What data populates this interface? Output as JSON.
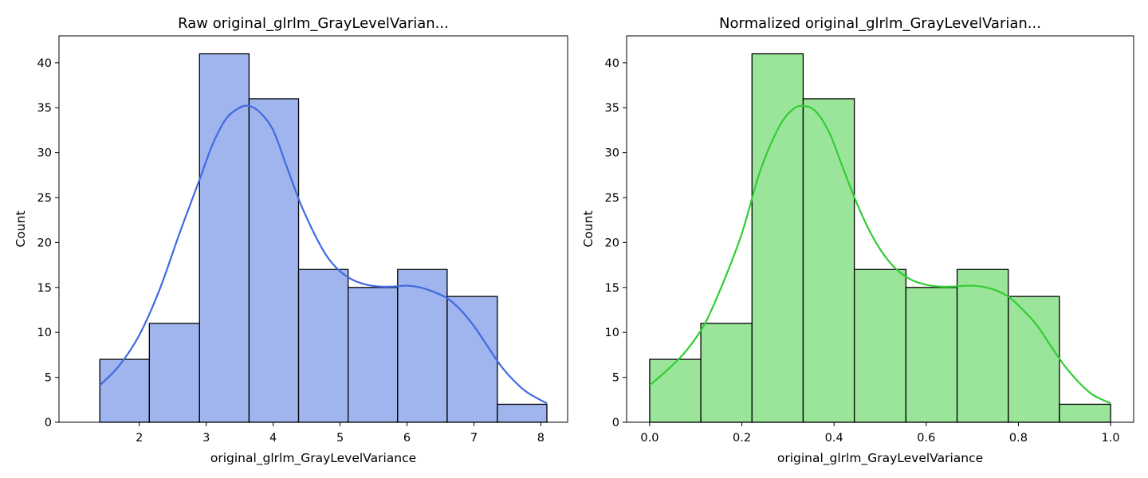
{
  "chart_data": [
    {
      "type": "bar",
      "title": "Raw original_glrlm_GrayLevelVarian...",
      "xlabel": "original_glrlm_GrayLevelVariance",
      "ylabel": "Count",
      "xlim": [
        0.8,
        8.4
      ],
      "ylim": [
        0,
        43
      ],
      "xticks": [
        2,
        3,
        4,
        5,
        6,
        7,
        8
      ],
      "yticks": [
        0,
        5,
        10,
        15,
        20,
        25,
        30,
        35,
        40
      ],
      "bin_edges": [
        1.41,
        2.15,
        2.9,
        3.64,
        4.38,
        5.12,
        5.86,
        6.6,
        7.35,
        8.09
      ],
      "values": [
        7,
        11,
        41,
        36,
        17,
        15,
        17,
        14,
        2
      ],
      "kde": {
        "x": [
          1.41,
          1.7,
          2.0,
          2.3,
          2.6,
          2.9,
          3.1,
          3.3,
          3.5,
          3.64,
          3.8,
          4.0,
          4.2,
          4.4,
          4.6,
          4.8,
          5.0,
          5.2,
          5.4,
          5.6,
          5.8,
          6.0,
          6.2,
          6.4,
          6.6,
          6.8,
          7.0,
          7.2,
          7.4,
          7.6,
          7.8,
          8.09
        ],
        "y": [
          4.1,
          6.3,
          9.7,
          14.7,
          21.0,
          27.0,
          31.0,
          33.8,
          35.0,
          35.2,
          34.5,
          32.5,
          28.5,
          24.5,
          21.2,
          18.5,
          16.8,
          15.8,
          15.3,
          15.1,
          15.1,
          15.2,
          15.0,
          14.5,
          13.8,
          12.5,
          10.7,
          8.5,
          6.3,
          4.6,
          3.3,
          2.1
        ]
      },
      "bar_color": "#a0b4ee",
      "line_color": "#4169e1",
      "grid": false,
      "legend": "none"
    },
    {
      "type": "bar",
      "title": "Normalized original_glrlm_GrayLevelVarian...",
      "xlabel": "original_glrlm_GrayLevelVariance",
      "ylabel": "Count",
      "xlim": [
        -0.05,
        1.05
      ],
      "ylim": [
        0,
        43
      ],
      "xticks": [
        0.0,
        0.2,
        0.4,
        0.6,
        0.8,
        1.0
      ],
      "xtick_labels": [
        "0.0",
        "0.2",
        "0.4",
        "0.6",
        "0.8",
        "1.0"
      ],
      "yticks": [
        0,
        5,
        10,
        15,
        20,
        25,
        30,
        35,
        40
      ],
      "bin_edges": [
        0.0,
        0.111,
        0.222,
        0.333,
        0.444,
        0.556,
        0.667,
        0.778,
        0.889,
        1.0
      ],
      "values": [
        7,
        11,
        41,
        36,
        17,
        15,
        17,
        14,
        2
      ],
      "kde": {
        "x": [
          0.0,
          0.04,
          0.08,
          0.12,
          0.16,
          0.2,
          0.24,
          0.28,
          0.31,
          0.333,
          0.36,
          0.39,
          0.42,
          0.45,
          0.48,
          0.51,
          0.54,
          0.57,
          0.6,
          0.63,
          0.66,
          0.69,
          0.72,
          0.75,
          0.78,
          0.81,
          0.84,
          0.87,
          0.9,
          0.93,
          0.96,
          1.0
        ],
        "y": [
          4.1,
          5.9,
          8.0,
          11.0,
          15.6,
          21.0,
          28.0,
          32.8,
          34.8,
          35.2,
          34.6,
          32.2,
          28.2,
          24.3,
          21.0,
          18.5,
          16.8,
          15.8,
          15.3,
          15.1,
          15.1,
          15.2,
          15.1,
          14.7,
          13.9,
          12.5,
          10.8,
          8.5,
          6.3,
          4.5,
          3.1,
          2.1
        ]
      },
      "bar_color": "#9ae59a",
      "line_color": "#32cd32",
      "grid": false,
      "legend": "none"
    }
  ]
}
